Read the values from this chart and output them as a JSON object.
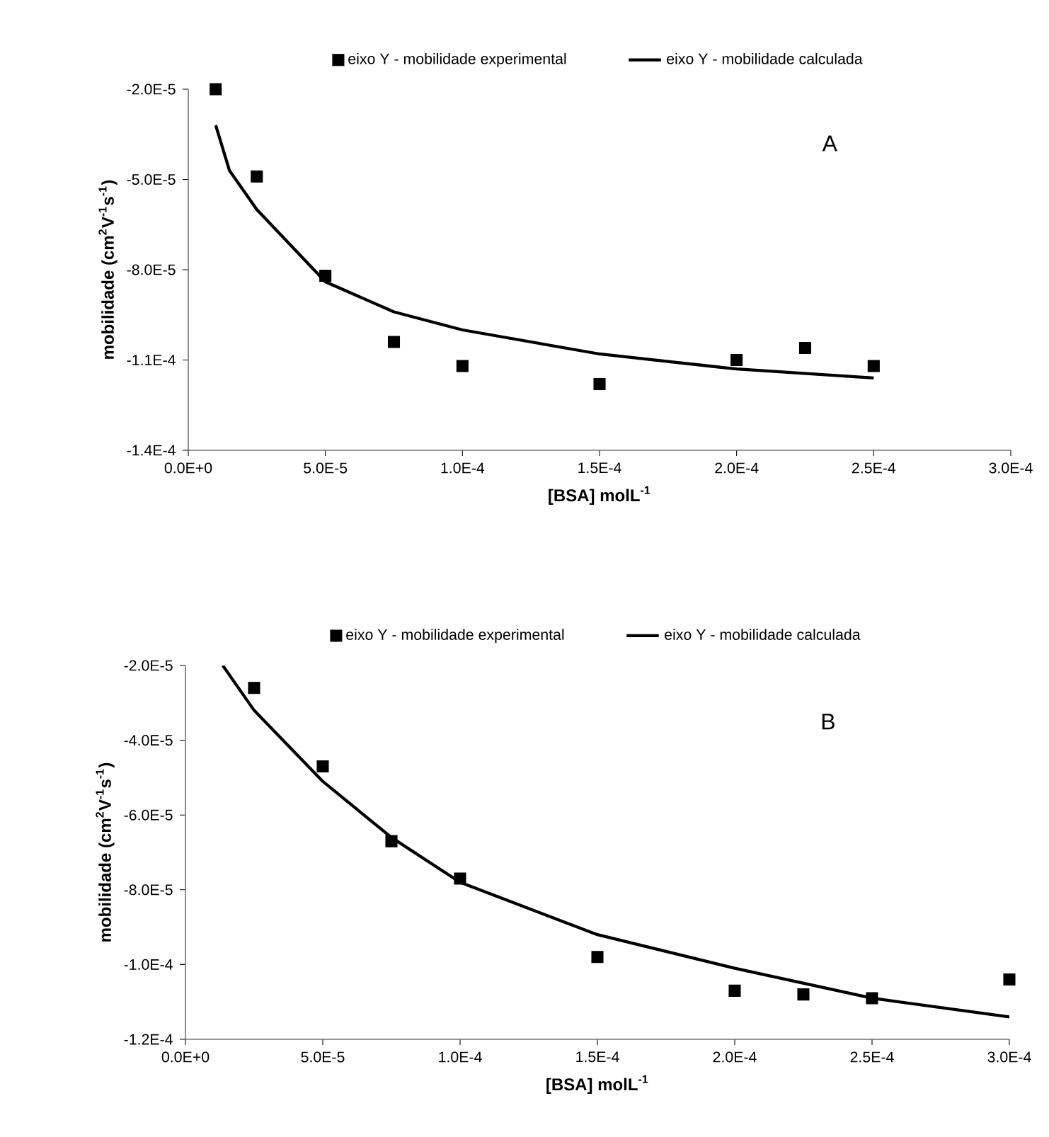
{
  "chart_data": [
    {
      "type": "scatter",
      "xlabel": "[BSA]  molL$^{-1}$",
      "ylabel": "mobilidade (cm$^{2}$V$^{-1}$s$^{-1}$)",
      "annotations": [
        "A"
      ],
      "legend": "top",
      "grid": false,
      "xlim": [
        0,
        0.0003
      ],
      "ylim": [
        -0.00014,
        -2e-05
      ],
      "xticks": [
        {
          "value": 0,
          "label": "0.0E+0"
        },
        {
          "value": 5e-05,
          "label": "5.0E-5"
        },
        {
          "value": 0.0001,
          "label": "1.0E-4"
        },
        {
          "value": 0.00015,
          "label": "1.5E-4"
        },
        {
          "value": 0.0002,
          "label": "2.0E-4"
        },
        {
          "value": 0.00025,
          "label": "2.5E-4"
        },
        {
          "value": 0.0003,
          "label": "3.0E-4"
        }
      ],
      "yticks": [
        {
          "value": -2e-05,
          "label": "-2.0E-5"
        },
        {
          "value": -5e-05,
          "label": "-5.0E-5"
        },
        {
          "value": -8e-05,
          "label": "-8.0E-5"
        },
        {
          "value": -0.00011,
          "label": "-1.1E-4"
        },
        {
          "value": -0.00014,
          "label": "-1.4E-4"
        }
      ],
      "series": [
        {
          "name": "eixo Y - mobilidade experimental",
          "type": "scatter",
          "marker": "square",
          "color": "#000000",
          "x": [
            1e-05,
            2.5e-05,
            5e-05,
            7.5e-05,
            0.0001,
            0.00015,
            0.0002,
            0.000225,
            0.00025
          ],
          "values": [
            -2e-05,
            -4.9e-05,
            -8.2e-05,
            -0.000104,
            -0.000112,
            -0.000118,
            -0.00011,
            -0.000106,
            -0.000112
          ]
        },
        {
          "name": "eixo Y - mobilidade calculada",
          "type": "line",
          "marker": "none",
          "line_style": "solid",
          "color": "#000000",
          "x": [
            1e-05,
            1.5e-05,
            2.5e-05,
            5e-05,
            7.5e-05,
            0.0001,
            0.00015,
            0.0002,
            0.00025
          ],
          "values": [
            -3.2e-05,
            -4.7e-05,
            -6e-05,
            -8.4e-05,
            -9.4e-05,
            -0.0001,
            -0.000108,
            -0.000113,
            -0.000116
          ]
        }
      ]
    },
    {
      "type": "scatter",
      "xlabel": "[BSA] molL$^{-1}$",
      "ylabel": "mobilidade (cm$^{2}$V$^{-1}$s$^{-1}$)",
      "annotations": [
        "B"
      ],
      "legend": "top",
      "grid": false,
      "xlim": [
        0,
        0.0003
      ],
      "ylim": [
        -0.00012,
        -2e-05
      ],
      "xticks": [
        {
          "value": 0,
          "label": "0.0E+0"
        },
        {
          "value": 5e-05,
          "label": "5.0E-5"
        },
        {
          "value": 0.0001,
          "label": "1.0E-4"
        },
        {
          "value": 0.00015,
          "label": "1.5E-4"
        },
        {
          "value": 0.0002,
          "label": "2.0E-4"
        },
        {
          "value": 0.00025,
          "label": "2.5E-4"
        },
        {
          "value": 0.0003,
          "label": "3.0E-4"
        }
      ],
      "yticks": [
        {
          "value": -2e-05,
          "label": "-2.0E-5"
        },
        {
          "value": -4e-05,
          "label": "-4.0E-5"
        },
        {
          "value": -6e-05,
          "label": "-6.0E-5"
        },
        {
          "value": -8e-05,
          "label": "-8.0E-5"
        },
        {
          "value": -0.0001,
          "label": "-1.0E-4"
        },
        {
          "value": -0.00012,
          "label": "-1.2E-4"
        }
      ],
      "series": [
        {
          "name": "eixo Y - mobilidade experimental",
          "type": "scatter",
          "marker": "square",
          "color": "#000000",
          "x": [
            2.5e-05,
            5e-05,
            7.5e-05,
            0.0001,
            0.00015,
            0.0002,
            0.000225,
            0.00025,
            0.0003
          ],
          "values": [
            -2.6e-05,
            -4.7e-05,
            -6.7e-05,
            -7.7e-05,
            -9.8e-05,
            -0.000107,
            -0.000108,
            -0.000109,
            -0.000104
          ]
        },
        {
          "name": "eixo Y - mobilidade calculada",
          "type": "line",
          "marker": "none",
          "line_style": "solid",
          "color": "#000000",
          "x": [
            1.36e-05,
            2.5e-05,
            5e-05,
            7.5e-05,
            0.0001,
            0.00015,
            0.0002,
            0.00025,
            0.0003
          ],
          "values": [
            -2e-05,
            -3.2e-05,
            -5.1e-05,
            -6.6e-05,
            -7.8e-05,
            -9.2e-05,
            -0.000101,
            -0.000109,
            -0.000114
          ]
        }
      ]
    }
  ]
}
